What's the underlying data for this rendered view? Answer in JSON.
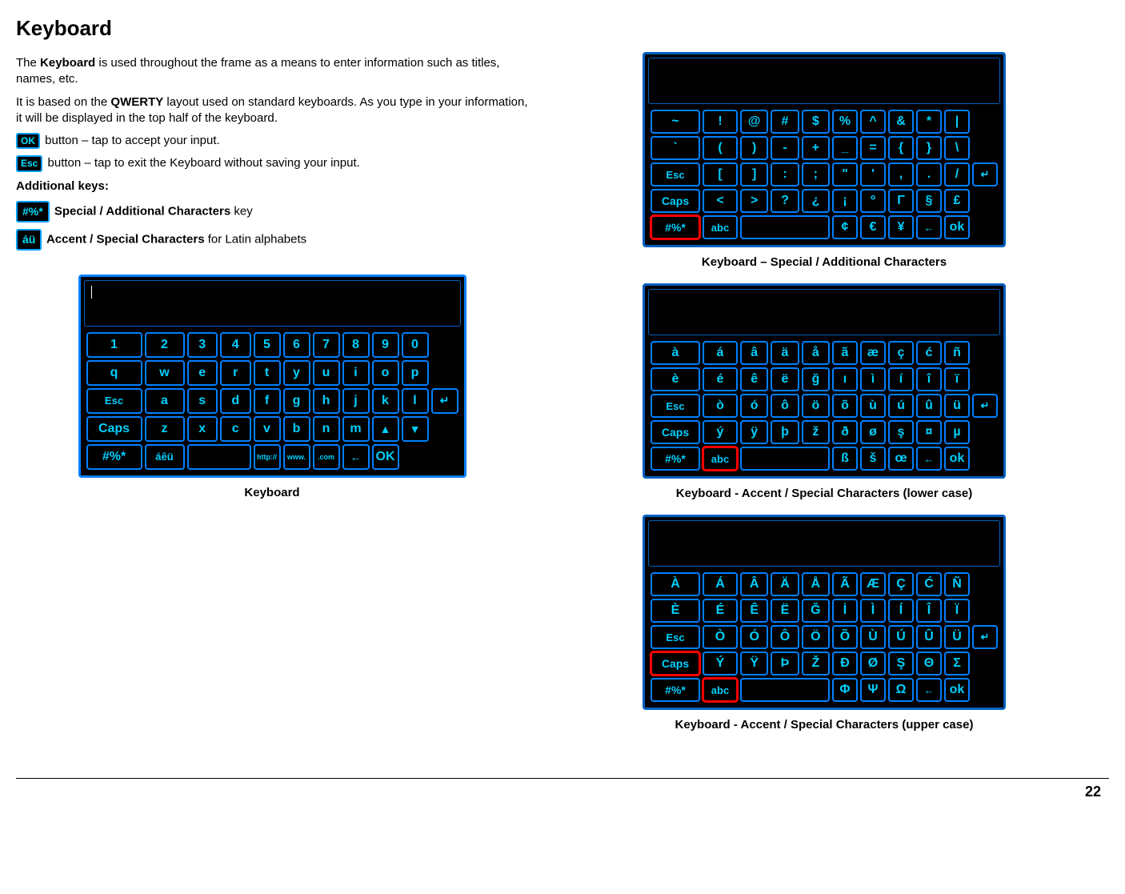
{
  "title": "Keyboard",
  "intro_prefix": "The ",
  "intro_bold1": "Keyboard",
  "intro_rest": " is used throughout the frame as a means to enter information such as titles, names, etc.",
  "para2_prefix": "It is based on the ",
  "para2_bold": "QWERTY",
  "para2_rest": " layout used on standard keyboards.  As you type in your information, it will be displayed in the top half of the keyboard.",
  "ok_key_label": "OK",
  "ok_desc": " button – tap to accept your input.",
  "esc_key_label": "Esc",
  "esc_desc": " button – tap to exit the Keyboard without saving your input.",
  "additional_keys_heading": "Additional keys:",
  "sym_key_label": "#%*",
  "sym_desc_bold": " Special / Additional Characters",
  "sym_desc_rest": " key",
  "au_key_label": "áü",
  "au_desc_bold": " Accent / Special Characters",
  "au_desc_rest": " for Latin alphabets",
  "caption_main": "Keyboard",
  "caption_special": "Keyboard – Special / Additional Characters",
  "caption_accent_lower": "Keyboard - Accent / Special Characters (lower case)",
  "caption_accent_upper": "Keyboard - Accent / Special Characters (upper case)",
  "page_number": "22",
  "kbd_main": {
    "rows": [
      [
        "1",
        "2",
        "3",
        "4",
        "5",
        "6",
        "7",
        "8",
        "9",
        "0"
      ],
      [
        "q",
        "w",
        "e",
        "r",
        "t",
        "y",
        "u",
        "i",
        "o",
        "p"
      ],
      [
        "Esc",
        "a",
        "s",
        "d",
        "f",
        "g",
        "h",
        "j",
        "k",
        "l",
        "↵"
      ],
      [
        "Caps",
        "z",
        "x",
        "c",
        "v",
        "b",
        "n",
        "m",
        "▲",
        "▼"
      ],
      [
        "#%*",
        "áêü",
        "",
        "http://",
        "www.",
        ".com",
        "←",
        "OK"
      ]
    ]
  },
  "kbd_special": {
    "rows": [
      [
        "~",
        "!",
        "@",
        "#",
        "$",
        "%",
        "^",
        "&",
        "*",
        "|"
      ],
      [
        "`",
        "(",
        ")",
        "-",
        "+",
        "_",
        "=",
        "{",
        "}",
        "\\"
      ],
      [
        "Esc",
        "[",
        "]",
        ":",
        ";",
        "\"",
        "'",
        ",",
        ".",
        "/",
        "↵"
      ],
      [
        "Caps",
        "<",
        ">",
        "?",
        "¿",
        "¡",
        "º",
        "Γ",
        "§",
        "£"
      ],
      [
        "#%*",
        "abc",
        "",
        "¢",
        "€",
        "¥",
        "←",
        "ok"
      ]
    ],
    "highlight": [
      4,
      0
    ]
  },
  "kbd_accent_lower": {
    "rows": [
      [
        "à",
        "á",
        "â",
        "ä",
        "å",
        "ã",
        "æ",
        "ç",
        "ć",
        "ñ"
      ],
      [
        "è",
        "é",
        "ê",
        "ë",
        "ğ",
        "ı",
        "ì",
        "í",
        "î",
        "ï"
      ],
      [
        "Esc",
        "ò",
        "ó",
        "ô",
        "ö",
        "õ",
        "ù",
        "ú",
        "û",
        "ü",
        "↵"
      ],
      [
        "Caps",
        "ý",
        "ÿ",
        "þ",
        "ž",
        "ð",
        "ø",
        "ş",
        "¤",
        "µ"
      ],
      [
        "#%*",
        "abc",
        "",
        "ß",
        "š",
        "œ",
        "←",
        "ok"
      ]
    ],
    "highlight": [
      4,
      1
    ]
  },
  "kbd_accent_upper": {
    "rows": [
      [
        "À",
        "Á",
        "Â",
        "Ä",
        "Å",
        "Ã",
        "Æ",
        "Ç",
        "Ć",
        "Ñ"
      ],
      [
        "È",
        "É",
        "Ê",
        "Ë",
        "Ğ",
        "İ",
        "Ì",
        "Í",
        "Î",
        "Ï"
      ],
      [
        "Esc",
        "Ò",
        "Ó",
        "Ô",
        "Ö",
        "Õ",
        "Ù",
        "Ú",
        "Û",
        "Ü",
        "↵"
      ],
      [
        "Caps",
        "Ý",
        "Ÿ",
        "Þ",
        "Ž",
        "Ð",
        "Ø",
        "Ş",
        "Θ",
        "Σ"
      ],
      [
        "#%*",
        "abc",
        "",
        "Φ",
        "Ψ",
        "Ω",
        "←",
        "ok"
      ]
    ],
    "highlight_caps": [
      3,
      0
    ],
    "highlight_abc": [
      4,
      1
    ]
  }
}
